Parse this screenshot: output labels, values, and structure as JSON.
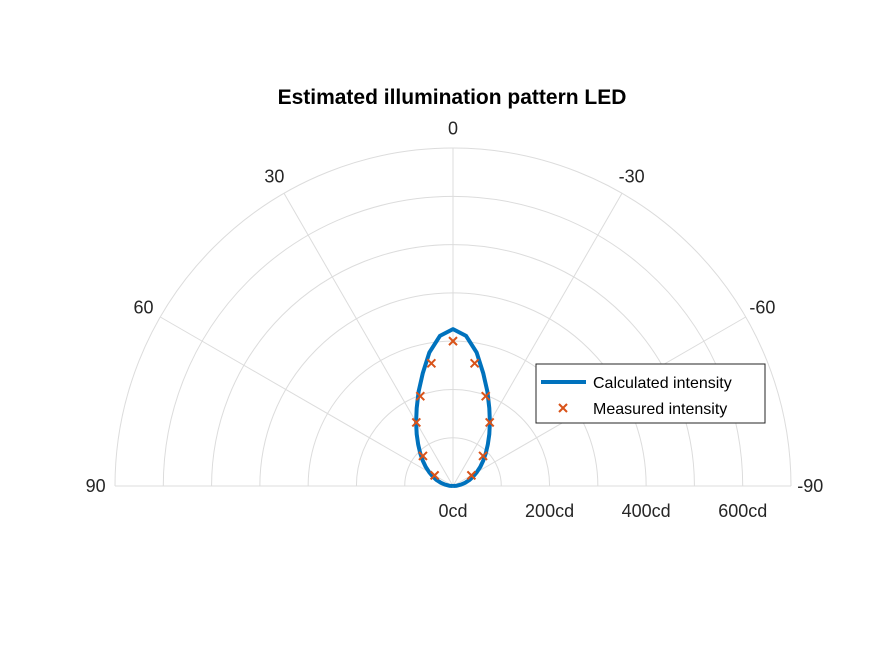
{
  "chart_data": {
    "type": "polar",
    "title": "Estimated illumination pattern LED",
    "theta_ticks": [
      "0",
      "30",
      "-30",
      "60",
      "-60",
      "90",
      "-90"
    ],
    "r_ticks": [
      "0cd",
      "200cd",
      "400cd",
      "600cd"
    ],
    "rlim": [
      0,
      700
    ],
    "theta_range_deg": [
      -90,
      90
    ],
    "grid": true,
    "legend_position": "right",
    "series": [
      {
        "name": "Calculated intensity",
        "style": "line",
        "color": "#0072bd",
        "theta_deg": [
          -90,
          -85,
          -80,
          -75,
          -70,
          -65,
          -60,
          -55,
          -50,
          -45,
          -40,
          -35,
          -30,
          -25,
          -20,
          -15,
          -10,
          -5,
          0,
          5,
          10,
          15,
          20,
          25,
          30,
          35,
          40,
          45,
          50,
          55,
          60,
          65,
          70,
          75,
          80,
          85,
          90
        ],
        "r": [
          0,
          8,
          17,
          26,
          36,
          46,
          57,
          69,
          82,
          96,
          112,
          131,
          153,
          178,
          208,
          242,
          281,
          312,
          325,
          312,
          281,
          242,
          208,
          178,
          153,
          131,
          112,
          96,
          82,
          69,
          57,
          46,
          36,
          26,
          17,
          8,
          0
        ]
      },
      {
        "name": "Measured intensity",
        "style": "marker-x",
        "color": "#d95319",
        "theta_deg": [
          -60,
          -45,
          -30,
          -20,
          -10,
          0,
          10,
          20,
          30,
          45,
          60
        ],
        "r": [
          44,
          88,
          152,
          198,
          258,
          300,
          258,
          198,
          152,
          88,
          44
        ]
      }
    ]
  }
}
